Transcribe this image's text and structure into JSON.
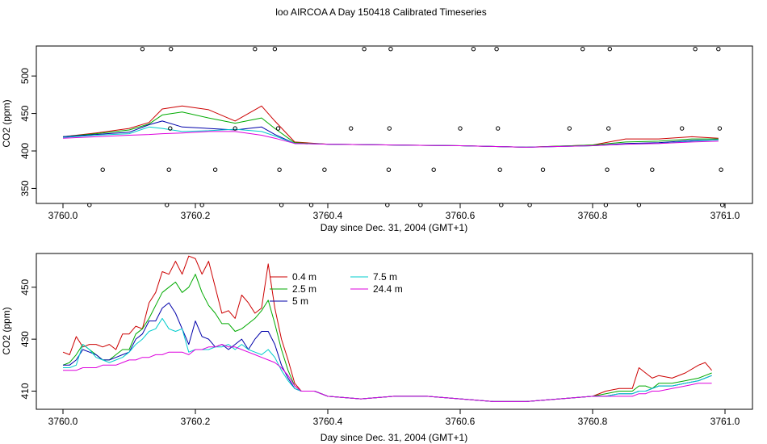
{
  "figure": {
    "title": "loo AIRCOA A  Day 150418  Calibrated Timeseries"
  },
  "colors": {
    "0.4 m": "#cc0000",
    "2.5 m": "#00aa00",
    "5 m": "#0000aa",
    "7.5 m": "#00cccc",
    "24.4 m": "#dd00dd"
  },
  "chart_data": [
    {
      "type": "line",
      "id": "top",
      "xlabel": "Day since Dec. 31, 2004 (GMT+1)",
      "ylabel": "CO2 (ppm)",
      "xlim": [
        3760.0,
        3761.0
      ],
      "ylim": [
        330,
        540
      ],
      "xticks": [
        3760.0,
        3760.2,
        3760.4,
        3760.6,
        3760.8,
        3761.0
      ],
      "xtick_labels": [
        "3760.0",
        "3760.2",
        "3760.4",
        "3760.6",
        "3760.8",
        "3761.0"
      ],
      "yticks": [
        350,
        400,
        450,
        500
      ],
      "ytick_labels": [
        "350",
        "400",
        "450",
        "500"
      ],
      "grid": false,
      "x": [
        3760.0,
        3760.05,
        3760.1,
        3760.13,
        3760.15,
        3760.18,
        3760.22,
        3760.26,
        3760.3,
        3760.32,
        3760.35,
        3760.4,
        3760.5,
        3760.6,
        3760.7,
        3760.8,
        3760.85,
        3760.9,
        3760.95,
        3760.99
      ],
      "series": [
        {
          "name": "0.4 m",
          "values": [
            419,
            424,
            430,
            438,
            456,
            460,
            455,
            440,
            460,
            440,
            412,
            409,
            408,
            407,
            405,
            408,
            416,
            416,
            419,
            417
          ]
        },
        {
          "name": "2.5 m",
          "values": [
            419,
            423,
            428,
            436,
            448,
            452,
            444,
            437,
            444,
            430,
            411,
            409,
            408,
            407,
            405,
            408,
            412,
            413,
            416,
            416
          ]
        },
        {
          "name": "5 m",
          "values": [
            419,
            422,
            425,
            435,
            440,
            432,
            430,
            428,
            432,
            422,
            410,
            409,
            408,
            407,
            405,
            407,
            410,
            411,
            414,
            415
          ]
        },
        {
          "name": "7.5 m",
          "values": [
            418,
            421,
            423,
            432,
            430,
            426,
            427,
            429,
            426,
            420,
            410,
            409,
            408,
            407,
            405,
            407,
            409,
            410,
            413,
            415
          ]
        },
        {
          "name": "24.4 m",
          "values": [
            417,
            419,
            421,
            422,
            423,
            424,
            426,
            426,
            421,
            417,
            410,
            409,
            408,
            407,
            405,
            407,
            409,
            410,
            412,
            413
          ]
        }
      ],
      "markers": {
        "type": "scatter",
        "points": [
          [
            3760.04,
            328
          ],
          [
            3760.06,
            375
          ],
          [
            3760.12,
            536
          ],
          [
            3760.157,
            328
          ],
          [
            3760.16,
            375
          ],
          [
            3760.162,
            430
          ],
          [
            3760.163,
            536
          ],
          [
            3760.21,
            328
          ],
          [
            3760.23,
            375
          ],
          [
            3760.26,
            430
          ],
          [
            3760.29,
            536
          ],
          [
            3760.32,
            536
          ],
          [
            3760.325,
            430
          ],
          [
            3760.327,
            375
          ],
          [
            3760.33,
            328
          ],
          [
            3760.375,
            328
          ],
          [
            3760.395,
            375
          ],
          [
            3760.435,
            430
          ],
          [
            3760.455,
            536
          ],
          [
            3760.49,
            328
          ],
          [
            3760.492,
            375
          ],
          [
            3760.493,
            430
          ],
          [
            3760.495,
            536
          ],
          [
            3760.54,
            328
          ],
          [
            3760.56,
            375
          ],
          [
            3760.6,
            430
          ],
          [
            3760.62,
            536
          ],
          [
            3760.655,
            536
          ],
          [
            3760.657,
            430
          ],
          [
            3760.66,
            375
          ],
          [
            3760.662,
            328
          ],
          [
            3760.705,
            328
          ],
          [
            3760.725,
            375
          ],
          [
            3760.765,
            430
          ],
          [
            3760.785,
            536
          ],
          [
            3760.82,
            328
          ],
          [
            3760.822,
            375
          ],
          [
            3760.824,
            430
          ],
          [
            3760.826,
            536
          ],
          [
            3760.87,
            328
          ],
          [
            3760.89,
            375
          ],
          [
            3760.935,
            430
          ],
          [
            3760.955,
            536
          ],
          [
            3760.99,
            536
          ],
          [
            3760.992,
            430
          ],
          [
            3760.994,
            375
          ],
          [
            3760.996,
            328
          ]
        ]
      }
    },
    {
      "type": "line",
      "id": "bottom",
      "xlabel": "Day since Dec. 31, 2004 (GMT+1)",
      "ylabel": "CO2 (ppm)",
      "xlim": [
        3760.0,
        3761.0
      ],
      "ylim": [
        403,
        463
      ],
      "xticks": [
        3760.0,
        3760.2,
        3760.4,
        3760.6,
        3760.8,
        3761.0
      ],
      "xtick_labels": [
        "3760.0",
        "3760.2",
        "3760.4",
        "3760.6",
        "3760.8",
        "3761.0"
      ],
      "yticks": [
        410,
        430,
        450
      ],
      "ytick_labels": [
        "410",
        "430",
        "450"
      ],
      "grid": false,
      "legend_position": "top-center",
      "x": [
        3760.0,
        3760.01,
        3760.02,
        3760.03,
        3760.04,
        3760.05,
        3760.06,
        3760.07,
        3760.08,
        3760.09,
        3760.1,
        3760.11,
        3760.12,
        3760.13,
        3760.14,
        3760.15,
        3760.16,
        3760.17,
        3760.18,
        3760.19,
        3760.2,
        3760.21,
        3760.22,
        3760.23,
        3760.24,
        3760.25,
        3760.26,
        3760.27,
        3760.28,
        3760.29,
        3760.3,
        3760.31,
        3760.32,
        3760.33,
        3760.34,
        3760.35,
        3760.36,
        3760.38,
        3760.4,
        3760.45,
        3760.5,
        3760.55,
        3760.6,
        3760.65,
        3760.7,
        3760.75,
        3760.8,
        3760.82,
        3760.84,
        3760.86,
        3760.87,
        3760.88,
        3760.89,
        3760.9,
        3760.92,
        3760.94,
        3760.96,
        3760.97,
        3760.98
      ],
      "series": [
        {
          "name": "0.4 m",
          "values": [
            425,
            424,
            431,
            427,
            428,
            428,
            427,
            428,
            426,
            432,
            432,
            435,
            434,
            444,
            448,
            456,
            455,
            460,
            455,
            462,
            461,
            455,
            460,
            450,
            440,
            441,
            438,
            447,
            444,
            440,
            442,
            459,
            442,
            430,
            422,
            413,
            410,
            410,
            408,
            407,
            408,
            408,
            407,
            406,
            406,
            407,
            408,
            410,
            411,
            411,
            419,
            417,
            415,
            416,
            415,
            417,
            420,
            421,
            418
          ]
        },
        {
          "name": "2.5 m",
          "values": [
            420,
            421,
            424,
            428,
            426,
            424,
            422,
            422,
            424,
            426,
            426,
            432,
            434,
            438,
            443,
            448,
            450,
            452,
            448,
            450,
            455,
            448,
            443,
            440,
            436,
            436,
            433,
            434,
            436,
            438,
            441,
            445,
            436,
            426,
            418,
            412,
            410,
            410,
            408,
            407,
            408,
            408,
            407,
            406,
            406,
            407,
            408,
            409,
            410,
            410,
            412,
            412,
            411,
            413,
            413,
            414,
            415,
            416,
            417
          ]
        },
        {
          "name": "5 m",
          "values": [
            420,
            420,
            422,
            426,
            425,
            424,
            422,
            422,
            423,
            424,
            425,
            430,
            432,
            437,
            437,
            442,
            444,
            440,
            434,
            428,
            437,
            431,
            430,
            427,
            428,
            426,
            428,
            430,
            426,
            430,
            433,
            433,
            428,
            420,
            415,
            411,
            410,
            410,
            408,
            407,
            408,
            408,
            407,
            406,
            406,
            407,
            408,
            408,
            409,
            409,
            410,
            410,
            411,
            412,
            412,
            413,
            414,
            415,
            416
          ]
        },
        {
          "name": "7.5 m",
          "values": [
            419,
            419,
            420,
            428,
            426,
            423,
            422,
            421,
            422,
            423,
            425,
            428,
            430,
            433,
            434,
            438,
            434,
            433,
            434,
            425,
            426,
            426,
            426,
            427,
            427,
            428,
            426,
            428,
            426,
            425,
            424,
            426,
            423,
            418,
            414,
            411,
            410,
            410,
            408,
            407,
            408,
            408,
            407,
            406,
            406,
            407,
            408,
            408,
            409,
            409,
            410,
            410,
            411,
            412,
            412,
            413,
            414,
            415,
            416
          ]
        },
        {
          "name": "24.4 m",
          "values": [
            418,
            418,
            418,
            419,
            419,
            419,
            420,
            420,
            420,
            421,
            422,
            422,
            423,
            423,
            424,
            424,
            425,
            425,
            425,
            424,
            426,
            426,
            427,
            427,
            428,
            427,
            427,
            426,
            425,
            424,
            423,
            422,
            421,
            419,
            416,
            412,
            410,
            410,
            408,
            407,
            408,
            408,
            407,
            406,
            406,
            407,
            408,
            408,
            408,
            408,
            409,
            409,
            410,
            410,
            411,
            412,
            413,
            413,
            413
          ]
        }
      ]
    }
  ]
}
